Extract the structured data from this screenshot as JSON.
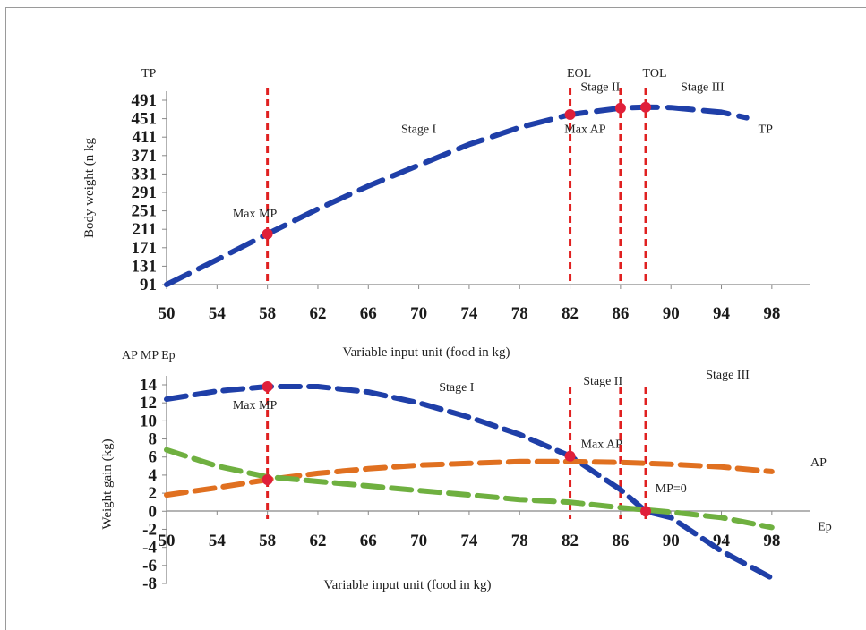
{
  "chart_data": [
    {
      "type": "line",
      "corner_label": "TP",
      "xlabel": "Variable  input unit (food in kg)",
      "ylabel": "Body  weight (n kg",
      "x_ticks": [
        50,
        54,
        58,
        62,
        66,
        70,
        74,
        78,
        82,
        86,
        90,
        94,
        98
      ],
      "y_ticks": [
        91,
        131,
        171,
        211,
        251,
        291,
        331,
        371,
        411,
        451,
        491
      ],
      "xlim": [
        50,
        100
      ],
      "ylim": [
        91,
        491
      ],
      "grid": false,
      "series": [
        {
          "name": "TP",
          "color": "#1f3fa8",
          "x": [
            50,
            54,
            58,
            62,
            66,
            70,
            74,
            78,
            82,
            86,
            88,
            90,
            94,
            96
          ],
          "y": [
            91,
            145,
            201,
            255,
            305,
            350,
            395,
            432,
            460,
            474,
            476,
            475,
            465,
            453
          ]
        }
      ],
      "verticals": [
        {
          "x": 58,
          "label": ""
        },
        {
          "x": 82,
          "label": "EOL"
        },
        {
          "x": 86,
          "label": ""
        },
        {
          "x": 88,
          "label": "TOL"
        }
      ],
      "points": [
        {
          "x": 58,
          "y": 201
        },
        {
          "x": 82,
          "y": 460
        },
        {
          "x": 86,
          "y": 474
        },
        {
          "x": 88,
          "y": 476
        }
      ],
      "annotations": [
        {
          "text": "Max MP",
          "x": 57,
          "y": 237
        },
        {
          "text": "Stage  I",
          "x": 70,
          "y": 420
        },
        {
          "text": "Stage  II",
          "x": 84.4,
          "y": 511
        },
        {
          "text": "Stage III",
          "x": 92.5,
          "y": 511
        },
        {
          "text": "Max AP",
          "x": 83.2,
          "y": 420
        },
        {
          "text": "TP",
          "x": 97.5,
          "y": 420
        }
      ]
    },
    {
      "type": "line",
      "corner_label": "AP MP Ep",
      "xlabel": "Variable  input unit (food in kg)",
      "ylabel": "Weight gain (kg)",
      "x_ticks": [
        50,
        54,
        58,
        62,
        66,
        70,
        74,
        78,
        82,
        86,
        90,
        94,
        98
      ],
      "y_ticks": [
        -8,
        -6,
        -4,
        -2,
        0,
        2,
        4,
        6,
        8,
        10,
        12,
        14
      ],
      "xlim": [
        50,
        100
      ],
      "ylim": [
        -8,
        14
      ],
      "grid": false,
      "series": [
        {
          "name": "MP",
          "color": "#1f3fa8",
          "x": [
            50,
            54,
            58,
            62,
            66,
            70,
            74,
            78,
            82,
            86,
            88,
            90,
            94,
            98
          ],
          "y": [
            12.4,
            13.3,
            13.8,
            13.8,
            13.2,
            12.0,
            10.4,
            8.5,
            6.1,
            2.4,
            0,
            -0.7,
            -4.4,
            -7.4
          ]
        },
        {
          "name": "AP",
          "color": "#e07020",
          "x": [
            50,
            54,
            58,
            62,
            66,
            70,
            74,
            78,
            82,
            86,
            90,
            94,
            98
          ],
          "y": [
            1.8,
            2.6,
            3.5,
            4.2,
            4.7,
            5.1,
            5.3,
            5.5,
            5.5,
            5.4,
            5.2,
            4.9,
            4.4
          ]
        },
        {
          "name": "Ep",
          "color": "#6fb040",
          "x": [
            50,
            54,
            58,
            62,
            66,
            70,
            74,
            78,
            82,
            86,
            90,
            94,
            98
          ],
          "y": [
            6.8,
            5.0,
            3.8,
            3.3,
            2.8,
            2.3,
            1.8,
            1.3,
            1.0,
            0.4,
            -0.1,
            -0.7,
            -1.8
          ]
        }
      ],
      "points": [
        {
          "x": 58,
          "y": 3.5
        },
        {
          "x": 58,
          "y": 13.8
        },
        {
          "x": 82,
          "y": 6.1
        },
        {
          "x": 88,
          "y": 0
        }
      ],
      "annotations": [
        {
          "text": "Max MP",
          "x": 57,
          "y": 11.3
        },
        {
          "text": "Stage  I",
          "x": 73,
          "y": 13.3
        },
        {
          "text": "Stage  II",
          "x": 84.6,
          "y": 14.0
        },
        {
          "text": "Stage  III",
          "x": 94.5,
          "y": 14.7
        },
        {
          "text": "Max AP",
          "x": 84.5,
          "y": 7.0
        },
        {
          "text": "MP=0",
          "x": 90,
          "y": 2.1
        },
        {
          "text": "AP",
          "x": 101.7,
          "y": 5.0
        },
        {
          "text": "Ep",
          "x": 102.2,
          "y": -2.1
        }
      ]
    }
  ]
}
